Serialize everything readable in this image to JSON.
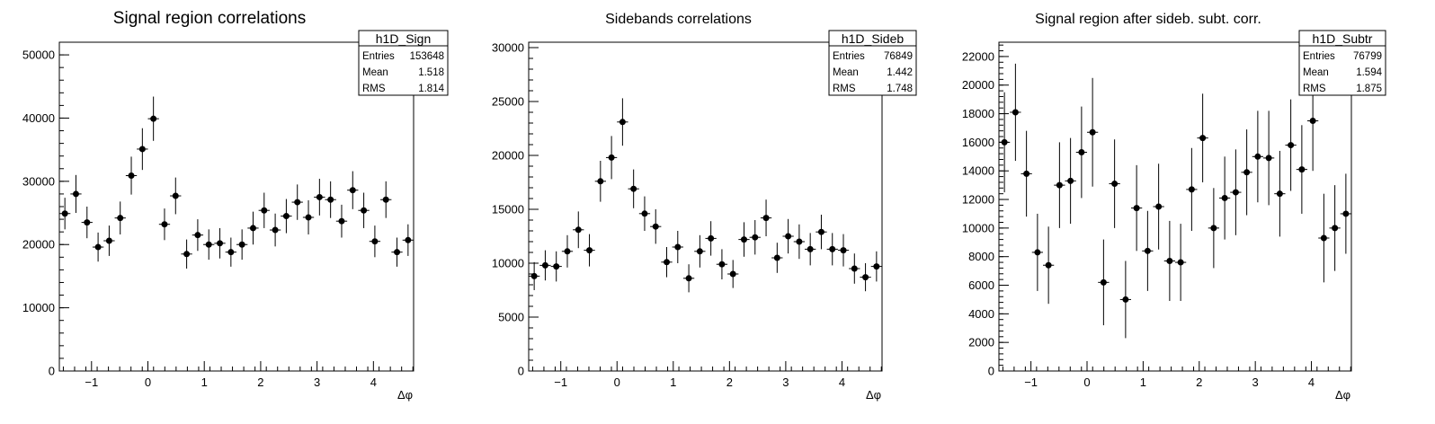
{
  "axis_symbol": "Δφ",
  "chart_data": [
    {
      "type": "scatter",
      "title": "Signal region correlations",
      "xlabel": "Δφ",
      "ylabel": "",
      "xlim": [
        -1.5708,
        4.7124
      ],
      "ylim": [
        0,
        52000
      ],
      "xticks": [
        -1,
        0,
        1,
        2,
        3,
        4
      ],
      "yticks": [
        0,
        10000,
        20000,
        30000,
        40000,
        50000
      ],
      "stats": {
        "name": "h1D_Sign",
        "rows": [
          [
            "Entries",
            "153648"
          ],
          [
            "Mean",
            "1.518"
          ],
          [
            "RMS",
            "1.814"
          ]
        ]
      },
      "series": [
        {
          "values": [
            24900,
            28000,
            23500,
            19600,
            20600,
            24200,
            30900,
            35100,
            39900,
            23200,
            27700,
            18500,
            21500,
            20000,
            20200,
            18800,
            20000,
            22600,
            25400,
            22300,
            24500,
            26700,
            24300,
            27500,
            27100,
            23700,
            28600,
            25400,
            20500,
            27100,
            18800,
            20700
          ],
          "errors": [
            2500,
            3000,
            2500,
            2300,
            2400,
            2600,
            3000,
            3300,
            3500,
            2500,
            2900,
            2300,
            2500,
            2400,
            2400,
            2300,
            2400,
            2600,
            2800,
            2600,
            2700,
            2800,
            2700,
            2900,
            2900,
            2600,
            3000,
            2800,
            2500,
            2900,
            2300,
            2500
          ]
        }
      ]
    },
    {
      "type": "scatter",
      "title": "Sidebands correlations",
      "xlabel": "Δφ",
      "ylabel": "",
      "xlim": [
        -1.5708,
        4.7124
      ],
      "ylim": [
        0,
        30500
      ],
      "xticks": [
        -1,
        0,
        1,
        2,
        3,
        4
      ],
      "yticks": [
        0,
        5000,
        10000,
        15000,
        20000,
        25000,
        30000
      ],
      "stats": {
        "name": "h1D_Sideb",
        "rows": [
          [
            "Entries",
            "76849"
          ],
          [
            "Mean",
            "1.442"
          ],
          [
            "RMS",
            "1.748"
          ]
        ]
      },
      "series": [
        {
          "values": [
            8800,
            9800,
            9700,
            11100,
            13100,
            11200,
            17600,
            19800,
            23100,
            16900,
            14600,
            13400,
            10100,
            11500,
            8600,
            11100,
            12300,
            9900,
            9000,
            12200,
            12400,
            14200,
            10500,
            12500,
            12000,
            11300,
            12900,
            11300,
            11200,
            9500,
            8700,
            9700
          ],
          "errors": [
            1300,
            1400,
            1400,
            1500,
            1700,
            1500,
            1900,
            2000,
            2200,
            1800,
            1600,
            1600,
            1400,
            1500,
            1300,
            1500,
            1600,
            1400,
            1300,
            1600,
            1600,
            1700,
            1400,
            1600,
            1600,
            1500,
            1600,
            1500,
            1500,
            1400,
            1300,
            1400
          ]
        }
      ]
    },
    {
      "type": "scatter",
      "title": "Signal region after sideb. subt. corr.",
      "xlabel": "Δφ",
      "ylabel": "",
      "xlim": [
        -1.5708,
        4.7124
      ],
      "ylim": [
        0,
        23000
      ],
      "xticks": [
        -1,
        0,
        1,
        2,
        3,
        4
      ],
      "yticks": [
        0,
        2000,
        4000,
        6000,
        8000,
        10000,
        12000,
        14000,
        16000,
        18000,
        20000,
        22000
      ],
      "stats": {
        "name": "h1D_Subtr",
        "rows": [
          [
            "Entries",
            "76799"
          ],
          [
            "Mean",
            "1.594"
          ],
          [
            "RMS",
            "1.875"
          ]
        ]
      },
      "series": [
        {
          "values": [
            16000,
            18100,
            13800,
            8300,
            7400,
            13000,
            13300,
            15300,
            16700,
            6200,
            13100,
            5000,
            11400,
            8400,
            11500,
            7700,
            7600,
            12700,
            16300,
            10000,
            12100,
            12500,
            13900,
            15000,
            14900,
            12400,
            15800,
            14100,
            17500,
            9300,
            10000,
            11000
          ],
          "errors": [
            3500,
            3400,
            3000,
            2700,
            2700,
            3000,
            3000,
            3200,
            3800,
            3000,
            3100,
            2700,
            3000,
            2800,
            3000,
            2800,
            2700,
            2900,
            3100,
            2800,
            2900,
            3000,
            3000,
            3200,
            3300,
            3000,
            3200,
            3100,
            3500,
            3100,
            3000,
            2800
          ]
        }
      ]
    }
  ]
}
